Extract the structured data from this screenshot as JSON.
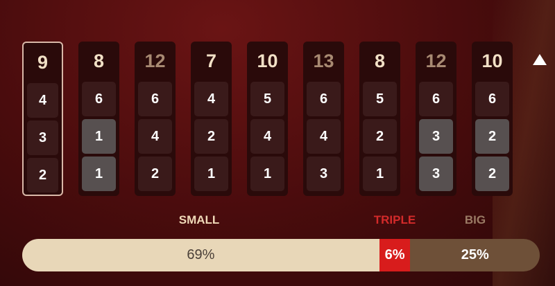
{
  "history": [
    {
      "total": "9",
      "type": "small",
      "dice": [
        "4",
        "3",
        "2"
      ],
      "highlight": [
        false,
        false,
        false
      ],
      "selected": true
    },
    {
      "total": "8",
      "type": "small",
      "dice": [
        "6",
        "1",
        "1"
      ],
      "highlight": [
        false,
        true,
        true
      ],
      "selected": false
    },
    {
      "total": "12",
      "type": "big",
      "dice": [
        "6",
        "4",
        "2"
      ],
      "highlight": [
        false,
        false,
        false
      ],
      "selected": false
    },
    {
      "total": "7",
      "type": "small",
      "dice": [
        "4",
        "2",
        "1"
      ],
      "highlight": [
        false,
        false,
        false
      ],
      "selected": false
    },
    {
      "total": "10",
      "type": "small",
      "dice": [
        "5",
        "4",
        "1"
      ],
      "highlight": [
        false,
        false,
        false
      ],
      "selected": false
    },
    {
      "total": "13",
      "type": "big",
      "dice": [
        "6",
        "4",
        "3"
      ],
      "highlight": [
        false,
        false,
        false
      ],
      "selected": false
    },
    {
      "total": "8",
      "type": "small",
      "dice": [
        "5",
        "2",
        "1"
      ],
      "highlight": [
        false,
        false,
        false
      ],
      "selected": false
    },
    {
      "total": "12",
      "type": "big",
      "dice": [
        "6",
        "3",
        "3"
      ],
      "highlight": [
        false,
        true,
        true
      ],
      "selected": false
    },
    {
      "total": "10",
      "type": "small",
      "dice": [
        "6",
        "2",
        "2"
      ],
      "highlight": [
        false,
        true,
        true
      ],
      "selected": false
    }
  ],
  "labels": {
    "small": "SMALL",
    "triple": "TRIPLE",
    "big": "BIG"
  },
  "stats": {
    "small": 69,
    "triple": 6,
    "big": 25,
    "small_text": "69%",
    "triple_text": "6%",
    "big_text": "25%"
  },
  "colors": {
    "small_bar": "#e8d7b8",
    "triple_bar": "#d81c1c",
    "big_bar": "#6e5038",
    "small_label": "#f0d9b8",
    "triple_label": "#d42a2a",
    "big_label": "#9a7a64"
  },
  "scroll_icon": "triangle-up-icon"
}
